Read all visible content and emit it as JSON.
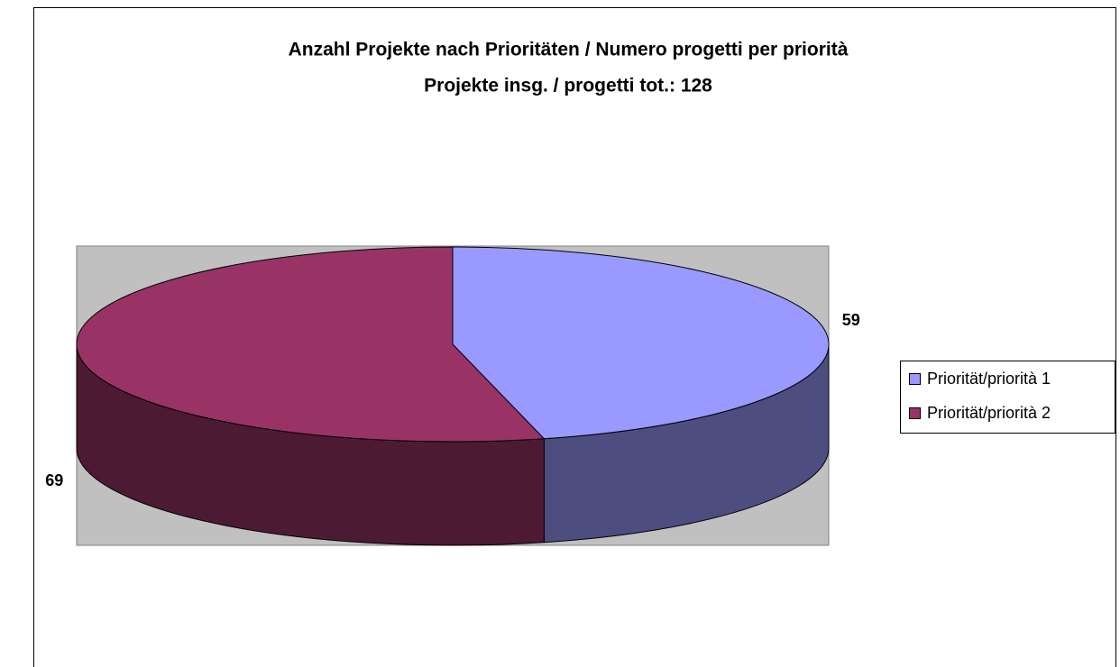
{
  "chart_data": {
    "type": "pie3d",
    "title": "Anzahl Projekte nach Prioritäten / Numero progetti per priorità",
    "subtitle": "Projekte insg. / progetti tot.: 128",
    "categories": [
      "Priorität/priorità 1",
      "Priorität/priorità 2"
    ],
    "values": [
      59,
      69
    ],
    "colors": [
      "#9999ff",
      "#993366"
    ],
    "side_colors": [
      "#4d4d80",
      "#4d1a33"
    ],
    "legend": "right"
  }
}
